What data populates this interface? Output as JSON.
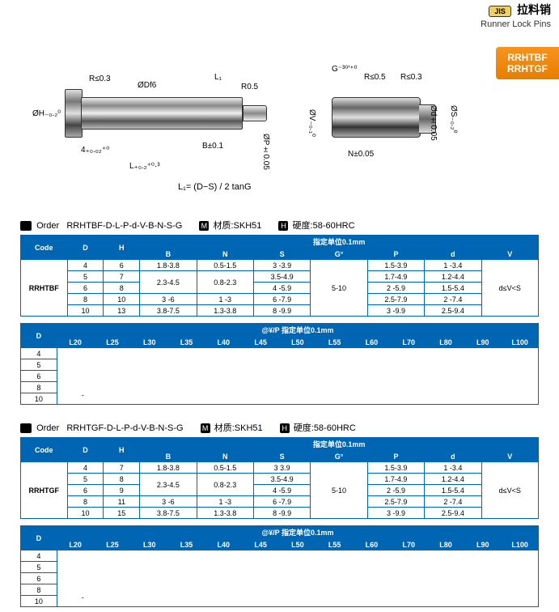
{
  "header": {
    "jis": "JIS",
    "cn_title": "拉料销",
    "en_title": "Runner Lock Pins",
    "badge_line1": "RRHTBF",
    "badge_line2": "RRHTGF"
  },
  "diagram": {
    "r1": "R≤0.3",
    "dfe": "ØDf6",
    "l1": "L₁",
    "r05": "R0.5",
    "h02": "ØH₋₀.₂⁰",
    "fourplus": "4₊₀.₀₂⁺⁰",
    "lplus": "L₊₀.₂⁺⁰·³",
    "b01": "B±0.1",
    "p005": "ØP±0.05",
    "g30": "G⁻³⁰′⁺⁰",
    "r2": "R≤0.5",
    "r3": "R≤0.3",
    "v01": "ØV₋₀.₁⁰",
    "n005": "N±0.05",
    "d005": "Ød±0.05",
    "s02": "ØS₋₀.₂⁰",
    "formula": "L₁= (D−S) / 2 tanG"
  },
  "spec1": {
    "order_prefix": "Order",
    "order_code": "RRHTBF-D-L-P-d-V-B-N-S-G",
    "mat_label": "材质:",
    "mat_value": "SKH51",
    "hard_label": "硬度:",
    "hard_value": "58-60HRC",
    "unit_header": "指定单位0.1mm",
    "cols": {
      "code": "Code",
      "D": "D",
      "H": "H",
      "B": "B",
      "N": "N",
      "S": "S",
      "G": "G°",
      "P": "P",
      "d": "d",
      "V": "V"
    },
    "code_value": "RRHTBF",
    "rows": [
      {
        "D": "4",
        "H": "6",
        "B": "1.8-3.8",
        "N": "0.5-1.5",
        "S": "3 -3.9",
        "G": "",
        "P": "1.5-3.9",
        "d": "1 -3.4",
        "V": ""
      },
      {
        "D": "5",
        "H": "7",
        "B": "2.3-4.5",
        "N": "0.8-2.3",
        "S": "3.5-4.9",
        "G": "",
        "P": "1.7-4.9",
        "d": "1.2-4.4",
        "V": ""
      },
      {
        "D": "6",
        "H": "8",
        "B": "",
        "N": "",
        "S": "4 -5.9",
        "G": "5-10",
        "P": "2 -5.9",
        "d": "1.5-5.4",
        "V": "d≤V<S"
      },
      {
        "D": "8",
        "H": "10",
        "B": "3 -6",
        "N": "1 -3",
        "S": "6 -7.9",
        "G": "",
        "P": "2.5-7.9",
        "d": "2 -7.4",
        "V": ""
      },
      {
        "D": "10",
        "H": "13",
        "B": "3.8-7.5",
        "N": "1.3-3.8",
        "S": "8 -9.9",
        "G": "",
        "P": "3 -9.9",
        "d": "2.5-9.4",
        "V": ""
      }
    ]
  },
  "price1": {
    "header": "@¥/P 指定单位0.1mm",
    "D_col": "D",
    "lengths": [
      "L20",
      "L25",
      "L30",
      "L35",
      "L40",
      "L45",
      "L50",
      "L55",
      "L60",
      "L70",
      "L80",
      "L90",
      "L100"
    ],
    "D_vals": [
      "4",
      "5",
      "6",
      "8",
      "10"
    ],
    "dash_cell": "-"
  },
  "spec2": {
    "order_prefix": "Order",
    "order_code": "RRHTGF-D-L-P-d-V-B-N-S-G",
    "mat_label": "材质:",
    "mat_value": "SKH51",
    "hard_label": "硬度:",
    "hard_value": "58-60HRC",
    "unit_header": "指定单位0.1mm",
    "cols": {
      "code": "Code",
      "D": "D",
      "H": "H",
      "B": "B",
      "N": "N",
      "S": "S",
      "G": "G°",
      "P": "P",
      "d": "d",
      "V": "V"
    },
    "code_value": "RRHTGF",
    "rows": [
      {
        "D": "4",
        "H": "7",
        "B": "1.8-3.8",
        "N": "0.5-1.5",
        "S": "3  3.9",
        "G": "",
        "P": "1.5-3.9",
        "d": "1 -3.4",
        "V": ""
      },
      {
        "D": "5",
        "H": "8",
        "B": "2.3-4.5",
        "N": "0.8-2.3",
        "S": "3.5-4.9",
        "G": "",
        "P": "1.7-4.9",
        "d": "1.2-4.4",
        "V": ""
      },
      {
        "D": "6",
        "H": "9",
        "B": "",
        "N": "",
        "S": "4 -5.9",
        "G": "5-10",
        "P": "2 -5.9",
        "d": "1.5-5.4",
        "V": "d≤V<S"
      },
      {
        "D": "8",
        "H": "11",
        "B": "3 -6",
        "N": "1 -3",
        "S": "6 -7.9",
        "G": "",
        "P": "2.5-7.9",
        "d": "2 -7.4",
        "V": ""
      },
      {
        "D": "10",
        "H": "15",
        "B": "3.8-7.5",
        "N": "1.3-3.8",
        "S": "8 -9.9",
        "G": "",
        "P": "3 -9.9",
        "d": "2.5-9.4",
        "V": ""
      }
    ]
  },
  "price2": {
    "header": "@¥/P 指定单位0.1mm",
    "D_col": "D",
    "lengths": [
      "L20",
      "L25",
      "L30",
      "L35",
      "L40",
      "L45",
      "L50",
      "L55",
      "L60",
      "L70",
      "L80",
      "L90",
      "L100"
    ],
    "D_vals": [
      "4",
      "5",
      "6",
      "8",
      "10"
    ],
    "dash_cell": "-"
  }
}
